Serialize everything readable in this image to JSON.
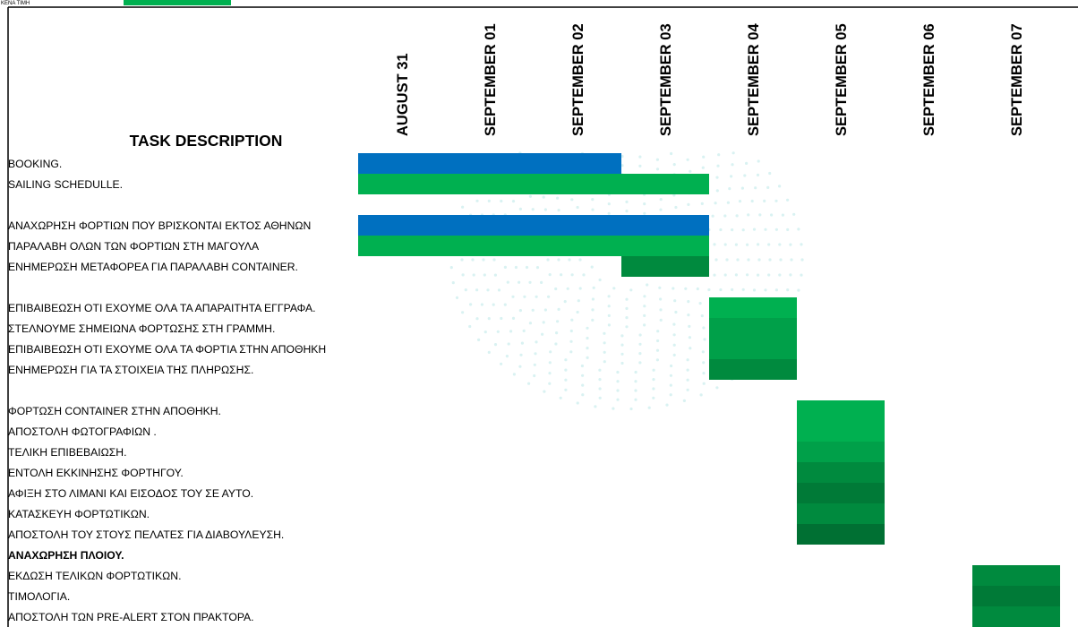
{
  "chart_data": {
    "type": "gantt",
    "top_label": "ΚΕΝΑ ΤΙΜΗ",
    "task_header": "TASK DESCRIPTION",
    "dates": [
      "AUGUST 31",
      "SEPTEMBER 01",
      "SEPTEMBER 02",
      "SEPTEMBER 03",
      "SEPTEMBER 04",
      "SEPTEMBER 05",
      "SEPTEMBER 06",
      "SEPTEMBER 07"
    ],
    "colors": {
      "blue": "#0070c0",
      "green_light": "#00b050",
      "green_mid": "#00a049",
      "green_dark": "#008a3e",
      "green_darker": "#007033",
      "legend": "#00b050",
      "watermark": "#d9f2f2"
    },
    "tasks": [
      {
        "label": "BOOKING.",
        "bold": false,
        "start": "AUGUST 31",
        "end": "SEPTEMBER 02",
        "color": "#0070c0"
      },
      {
        "label": "SAILING SCHEDULLE.",
        "bold": false,
        "start": "AUGUST 31",
        "end": "SEPTEMBER 03",
        "color": "#00b050"
      },
      {
        "label": "",
        "bold": false
      },
      {
        "label": "ΑΝΑΧΩΡΗΣΗ ΦΟΡΤΙΩΝ ΠΟΥ ΒΡΙΣΚΟΝΤΑΙ ΕΚΤΟΣ ΑΘΗΝΩΝ",
        "bold": false,
        "start": "AUGUST 31",
        "end": "SEPTEMBER 03",
        "color": "#0070c0"
      },
      {
        "label": "ΠΑΡΑΛΑΒΗ ΟΛΩΝ ΤΩΝ ΦΟΡΤΙΩΝ ΣΤΗ ΜΑΓΟΥΛΑ",
        "bold": false,
        "start": "AUGUST 31",
        "end": "SEPTEMBER 03",
        "color": "#00b050"
      },
      {
        "label": "ΕΝΗΜΕΡΩΣΗ ΜΕΤΑΦΟΡΕΑ ΓΙΑ ΠΑΡΑΛΑΒΗ CONTAINER.",
        "bold": false,
        "start": "SEPTEMBER 03",
        "end": "SEPTEMBER 03",
        "color": "#008a3e"
      },
      {
        "label": "",
        "bold": false
      },
      {
        "label": "ΕΠΙΒΑΙΒΕΩΣΗ ΟΤΙ ΕΧΟΥΜΕ ΟΛΑ ΤΑ ΑΠΑΡΑΙΤΗΤΑ ΕΓΓΡΑΦΑ.",
        "bold": false,
        "start": "SEPTEMBER 04",
        "end": "SEPTEMBER 04",
        "color": "#00b050"
      },
      {
        "label": "ΣΤΕΛΝΟΥΜΕ ΣΗΜΕΙΩΝΑ ΦΟΡΤΩΣΗΣ ΣΤΗ ΓΡΑΜΜΗ.",
        "bold": false,
        "start": "SEPTEMBER 04",
        "end": "SEPTEMBER 04",
        "color": "#00a049"
      },
      {
        "label": "ΕΠΙΒΑΙΒΕΩΣΗ ΟΤΙ ΕΧΟΥΜΕ ΟΛΑ ΤΑ ΦΟΡΤΙΑ ΣΤΗΝ ΑΠΟΘΗΚΗ",
        "bold": false,
        "start": "SEPTEMBER 04",
        "end": "SEPTEMBER 04",
        "color": "#00a049"
      },
      {
        "label": "ΕΝΗΜΕΡΩΣΗ ΓΙΑ ΤΑ ΣΤΟΙΧΕΙΑ ΤΗΣ ΠΛΗΡΩΣΗΣ.",
        "bold": false,
        "start": "SEPTEMBER 04",
        "end": "SEPTEMBER 04",
        "color": "#008a3e"
      },
      {
        "label": "",
        "bold": false
      },
      {
        "label": "ΦΟΡΤΩΣΗ CONTAINER ΣΤΗΝ ΑΠΟΘΗΚΗ.",
        "bold": false,
        "start": "SEPTEMBER 05",
        "end": "SEPTEMBER 05",
        "color": "#00b050"
      },
      {
        "label": "ΑΠΟΣΤΟΛΗ ΦΩΤΟΓΡΑΦΙΩΝ .",
        "bold": false,
        "start": "SEPTEMBER 05",
        "end": "SEPTEMBER 05",
        "color": "#00b050"
      },
      {
        "label": "ΤΕΛΙΚΗ ΕΠΙΒΕΒΑΙΩΣΗ.",
        "bold": false,
        "start": "SEPTEMBER 05",
        "end": "SEPTEMBER 05",
        "color": "#00a049"
      },
      {
        "label": "ΕΝΤΟΛΗ ΕΚΚΙΝΗΣΗΣ ΦΟΡΤΗΓΟΥ.",
        "bold": false,
        "start": "SEPTEMBER 05",
        "end": "SEPTEMBER 05",
        "color": "#008a3e"
      },
      {
        "label": "ΑΦΙΞΗ ΣΤΟ ΛΙΜΑΝΙ ΚΑΙ ΕΙΣΟΔΟΣ ΤΟΥ ΣΕ ΑΥΤΟ.",
        "bold": false,
        "start": "SEPTEMBER 05",
        "end": "SEPTEMBER 05",
        "color": "#007a37"
      },
      {
        "label": "ΚΑΤΑΣΚΕΥΗ ΦΟΡΤΩΤΙΚΩΝ.",
        "bold": false,
        "start": "SEPTEMBER 05",
        "end": "SEPTEMBER 05",
        "color": "#008a3e"
      },
      {
        "label": "ΑΠΟΣΤΟΛΗ ΤΟΥ ΣΤΟΥΣ ΠΕΛΑΤΕΣ ΓΙΑ ΔΙΑΒΟΥΛΕΥΣΗ.",
        "bold": false,
        "start": "SEPTEMBER 05",
        "end": "SEPTEMBER 05",
        "color": "#007033"
      },
      {
        "label": "ΑΝΑΧΩΡΗΣΗ ΠΛΟΙΟΥ.",
        "bold": true
      },
      {
        "label": "ΕΚΔΩΣΗ ΤΕΛΙΚΩΝ ΦΟΡΤΩΤΙΚΩΝ.",
        "bold": false,
        "start": "SEPTEMBER 07",
        "end": "SEPTEMBER 07",
        "color": "#008a3e"
      },
      {
        "label": "ΤΙΜΟΛΟΓΙΑ.",
        "bold": false,
        "start": "SEPTEMBER 07",
        "end": "SEPTEMBER 07",
        "color": "#007a37"
      },
      {
        "label": "ΑΠΟΣΤΟΛΗ ΤΩΝ PRE-ALERT ΣΤΟΝ ΠΡΑΚΤΟΡΑ.",
        "bold": false,
        "start": "SEPTEMBER 07",
        "end": "SEPTEMBER 07",
        "color": "#008a3e"
      }
    ]
  }
}
